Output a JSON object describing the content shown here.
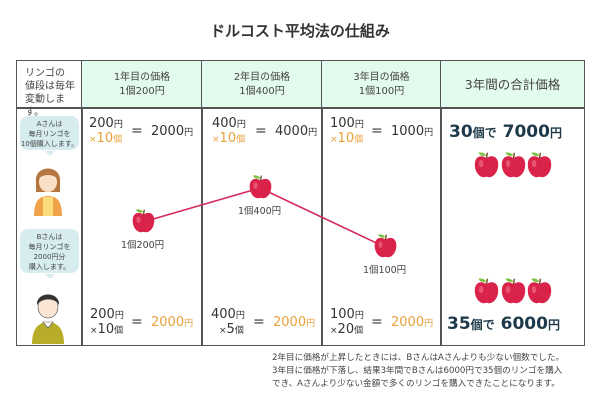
{
  "title": "ドルコスト平均法の仕組み",
  "corner_text": [
    "リンゴの",
    "値段は毎年",
    "変動します。"
  ],
  "headers": [
    {
      "line1": "1年目の価格",
      "line2": "1個200円"
    },
    {
      "line1": "2年目の価格",
      "line2": "1個400円"
    },
    {
      "line1": "3年目の価格",
      "line2": "1個100円"
    },
    {
      "line1": "3年間の合計価格"
    }
  ],
  "person_a": {
    "bubble": [
      "Aさんは",
      "毎月リンゴを",
      "10個購入します。"
    ]
  },
  "person_b": {
    "bubble": [
      "Bさんは",
      "毎月リンゴを",
      "2000円分",
      "購入します。"
    ]
  },
  "a_calcs": [
    {
      "price": "200",
      "qty": "10",
      "eq": "=",
      "total": "2000"
    },
    {
      "price": "400",
      "qty": "10",
      "eq": "=",
      "total": "4000"
    },
    {
      "price": "100",
      "qty": "10",
      "eq": "=",
      "total": "1000"
    }
  ],
  "b_calcs": [
    {
      "price": "200",
      "qty": "10",
      "eq": "=",
      "total": "2000"
    },
    {
      "price": "400",
      "qty": "5",
      "eq": "=",
      "total": "2000"
    },
    {
      "price": "100",
      "qty": "20",
      "eq": "=",
      "total": "2000"
    }
  ],
  "units": {
    "yen": "円",
    "ko": "個",
    "times": "×"
  },
  "price_points": [
    {
      "label": "1個200円",
      "price": 200
    },
    {
      "label": "1個400円",
      "price": 400
    },
    {
      "label": "1個100円",
      "price": 100
    }
  ],
  "totals": {
    "a": {
      "count": "30",
      "de": "個で",
      "amount": "7000",
      "yen": "円"
    },
    "b": {
      "count": "35",
      "de": "個で",
      "amount": "6000",
      "yen": "円"
    }
  },
  "note": [
    "2年目に価格が上昇したときには、BさんはAさんよりも少ない個数でした。",
    "3年目に価格が下落し、結果3年間でBさんは6000円で35個のリンゴを購入",
    "でき、Aさんより少ない金額で多くのリンゴを購入できたことになります。"
  ],
  "colors": {
    "header_bg": "#e3fbec",
    "accent_orange": "#e8a03c",
    "apple_red": "#d9234a",
    "line": "#d32a5a",
    "total_text": "#1e3a4a"
  }
}
